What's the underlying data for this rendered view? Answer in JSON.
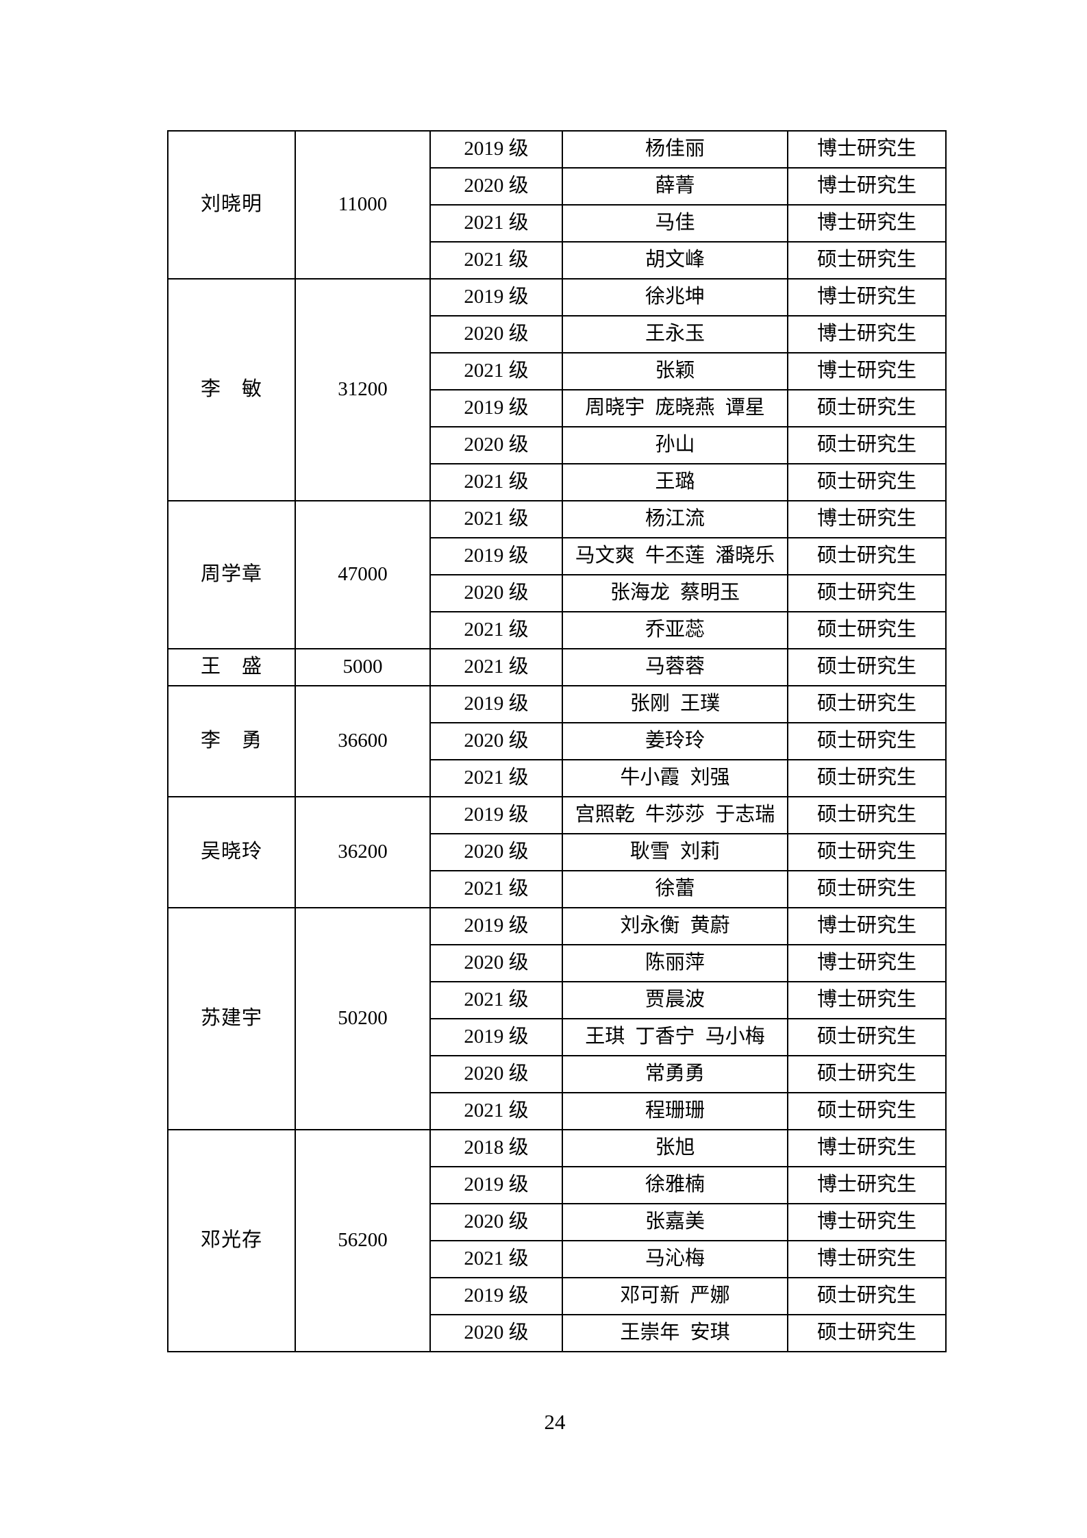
{
  "page": {
    "number": "24"
  },
  "table": {
    "groups": [
      {
        "advisor": "刘晓明",
        "amount": "11000",
        "rows": [
          {
            "grade": "2019 级",
            "students": "杨佳丽",
            "degree": "博士研究生"
          },
          {
            "grade": "2020 级",
            "students": "薛菁",
            "degree": "博士研究生"
          },
          {
            "grade": "2021 级",
            "students": "马佳",
            "degree": "博士研究生"
          },
          {
            "grade": "2021 级",
            "students": "胡文峰",
            "degree": "硕士研究生"
          }
        ]
      },
      {
        "advisor": "李　敏",
        "amount": "31200",
        "rows": [
          {
            "grade": "2019 级",
            "students": "徐兆坤",
            "degree": "博士研究生"
          },
          {
            "grade": "2020 级",
            "students": "王永玉",
            "degree": "博士研究生"
          },
          {
            "grade": "2021 级",
            "students": "张颖",
            "degree": "博士研究生"
          },
          {
            "grade": "2019 级",
            "students": "周晓宇 庞晓燕 谭星",
            "degree": "硕士研究生"
          },
          {
            "grade": "2020 级",
            "students": "孙山",
            "degree": "硕士研究生"
          },
          {
            "grade": "2021 级",
            "students": "王璐",
            "degree": "硕士研究生"
          }
        ]
      },
      {
        "advisor": "周学章",
        "amount": "47000",
        "rows": [
          {
            "grade": "2021 级",
            "students": "杨江流",
            "degree": "博士研究生"
          },
          {
            "grade": "2019 级",
            "students": "马文爽 牛丕莲 潘晓乐",
            "degree": "硕士研究生"
          },
          {
            "grade": "2020 级",
            "students": "张海龙 蔡明玉",
            "degree": "硕士研究生"
          },
          {
            "grade": "2021 级",
            "students": "乔亚蕊",
            "degree": "硕士研究生"
          }
        ]
      },
      {
        "advisor": "王　盛",
        "amount": "5000",
        "rows": [
          {
            "grade": "2021 级",
            "students": "马蓉蓉",
            "degree": "硕士研究生"
          }
        ]
      },
      {
        "advisor": "李　勇",
        "amount": "36600",
        "rows": [
          {
            "grade": "2019 级",
            "students": "张刚 王璞",
            "degree": "硕士研究生"
          },
          {
            "grade": "2020 级",
            "students": "姜玲玲",
            "degree": "硕士研究生"
          },
          {
            "grade": "2021 级",
            "students": "牛小霞 刘强",
            "degree": "硕士研究生"
          }
        ]
      },
      {
        "advisor": "吴晓玲",
        "amount": "36200",
        "rows": [
          {
            "grade": "2019 级",
            "students": "宫照乾 牛莎莎 于志瑞",
            "degree": "硕士研究生"
          },
          {
            "grade": "2020 级",
            "students": "耿雪 刘莉",
            "degree": "硕士研究生"
          },
          {
            "grade": "2021 级",
            "students": "徐蕾",
            "degree": "硕士研究生"
          }
        ]
      },
      {
        "advisor": "苏建宇",
        "amount": "50200",
        "rows": [
          {
            "grade": "2019 级",
            "students": "刘永衡 黄蔚",
            "degree": "博士研究生"
          },
          {
            "grade": "2020 级",
            "students": "陈丽萍",
            "degree": "博士研究生"
          },
          {
            "grade": "2021 级",
            "students": "贾晨波",
            "degree": "博士研究生"
          },
          {
            "grade": "2019 级",
            "students": "王琪 丁香宁 马小梅",
            "degree": "硕士研究生"
          },
          {
            "grade": "2020 级",
            "students": "常勇勇",
            "degree": "硕士研究生"
          },
          {
            "grade": "2021 级",
            "students": "程珊珊",
            "degree": "硕士研究生"
          }
        ]
      },
      {
        "advisor": "邓光存",
        "amount": "56200",
        "rows": [
          {
            "grade": "2018 级",
            "students": "张旭",
            "degree": "博士研究生"
          },
          {
            "grade": "2019 级",
            "students": "徐雅楠",
            "degree": "博士研究生"
          },
          {
            "grade": "2020 级",
            "students": "张嘉美",
            "degree": "博士研究生"
          },
          {
            "grade": "2021 级",
            "students": "马沁梅",
            "degree": "博士研究生"
          },
          {
            "grade": "2019 级",
            "students": "邓可新 严娜",
            "degree": "硕士研究生"
          },
          {
            "grade": "2020 级",
            "students": "王崇年 安琪",
            "degree": "硕士研究生"
          }
        ]
      }
    ]
  }
}
